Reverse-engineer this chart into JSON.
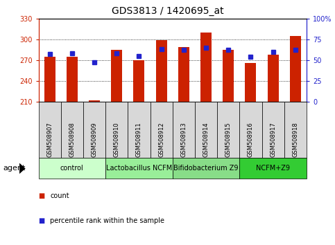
{
  "title": "GDS3813 / 1420695_at",
  "samples": [
    "GSM508907",
    "GSM508908",
    "GSM508909",
    "GSM508910",
    "GSM508911",
    "GSM508912",
    "GSM508913",
    "GSM508914",
    "GSM508915",
    "GSM508916",
    "GSM508917",
    "GSM508918"
  ],
  "counts": [
    275,
    275,
    212,
    285,
    270,
    299,
    289,
    310,
    285,
    266,
    278,
    305
  ],
  "percentile_ranks": [
    57,
    58,
    47,
    58,
    55,
    63,
    62,
    65,
    62,
    54,
    60,
    62
  ],
  "ymin": 210,
  "ymax": 330,
  "yticks": [
    210,
    240,
    270,
    300,
    330
  ],
  "y2min": 0,
  "y2max": 100,
  "y2ticks": [
    0,
    25,
    50,
    75,
    100
  ],
  "bar_color": "#cc2200",
  "dot_color": "#2222cc",
  "bar_width": 0.5,
  "groups": [
    {
      "label": "control",
      "samples": [
        "GSM508907",
        "GSM508908",
        "GSM508909"
      ],
      "color": "#ccffcc"
    },
    {
      "label": "Lactobacillus NCFM",
      "samples": [
        "GSM508910",
        "GSM508911",
        "GSM508912"
      ],
      "color": "#99ee99"
    },
    {
      "label": "Bifidobacterium Z9",
      "samples": [
        "GSM508913",
        "GSM508914",
        "GSM508915"
      ],
      "color": "#88dd88"
    },
    {
      "label": "NCFM+Z9",
      "samples": [
        "GSM508916",
        "GSM508917",
        "GSM508918"
      ],
      "color": "#33cc33"
    }
  ],
  "agent_label": "agent",
  "legend_count_label": "count",
  "legend_pct_label": "percentile rank within the sample",
  "title_fontsize": 10,
  "tick_fontsize": 7,
  "label_fontsize": 8,
  "group_fontsize": 7,
  "left_tick_color": "#cc2200",
  "right_tick_color": "#2222cc",
  "xtick_bg_color": "#d8d8d8",
  "grid_yticks": [
    240,
    270,
    300
  ]
}
